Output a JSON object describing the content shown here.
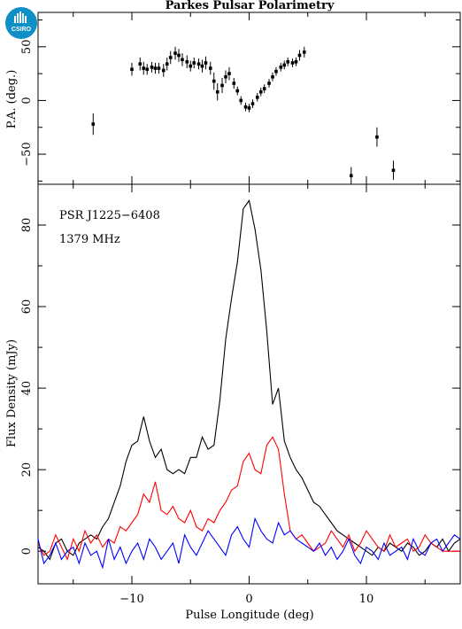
{
  "logo": {
    "text": "CSIRO",
    "color": "#0e8fc6"
  },
  "chart_data": {
    "title": "Parkes Pulsar Polarimetry",
    "annotations": [
      "PSR J1225−6408",
      "1379 MHz"
    ],
    "xlabel": "Pulse Longitude (deg)",
    "xlim": [
      -18,
      18
    ],
    "xticks": [
      -10,
      0,
      10
    ],
    "panels": [
      {
        "name": "pa",
        "type": "scatter",
        "ylabel": "P.A. (deg.)",
        "ylim": [
          -78,
          82
        ],
        "yticks": [
          -50,
          0,
          50
        ],
        "points": [
          [
            -13.3,
            -22,
            10
          ],
          [
            -10.0,
            29,
            6
          ],
          [
            -9.3,
            34,
            6
          ],
          [
            -9.0,
            30,
            6
          ],
          [
            -8.7,
            29,
            5
          ],
          [
            -8.3,
            31,
            5
          ],
          [
            -8.0,
            30,
            5
          ],
          [
            -7.7,
            30,
            5
          ],
          [
            -7.3,
            28,
            6
          ],
          [
            -7.0,
            34,
            6
          ],
          [
            -6.7,
            40,
            6
          ],
          [
            -6.3,
            44,
            6
          ],
          [
            -6.0,
            42,
            6
          ],
          [
            -5.7,
            38,
            6
          ],
          [
            -5.3,
            36,
            6
          ],
          [
            -5.0,
            32,
            5
          ],
          [
            -4.7,
            35,
            5
          ],
          [
            -4.3,
            34,
            5
          ],
          [
            -4.0,
            32,
            6
          ],
          [
            -3.7,
            35,
            6
          ],
          [
            -3.3,
            30,
            6
          ],
          [
            -3.0,
            18,
            8
          ],
          [
            -2.7,
            8,
            8
          ],
          [
            -2.3,
            14,
            7
          ],
          [
            -2.0,
            22,
            6
          ],
          [
            -1.7,
            25,
            6
          ],
          [
            -1.3,
            16,
            5
          ],
          [
            -1.0,
            9,
            4
          ],
          [
            -0.7,
            0,
            4
          ],
          [
            -0.3,
            -6,
            4
          ],
          [
            0.0,
            -7,
            4
          ],
          [
            0.3,
            -3,
            4
          ],
          [
            0.7,
            3,
            4
          ],
          [
            1.0,
            8,
            4
          ],
          [
            1.3,
            11,
            4
          ],
          [
            1.7,
            16,
            4
          ],
          [
            2.0,
            22,
            4
          ],
          [
            2.3,
            27,
            4
          ],
          [
            2.7,
            31,
            4
          ],
          [
            3.0,
            33,
            4
          ],
          [
            3.3,
            36,
            4
          ],
          [
            3.7,
            35,
            4
          ],
          [
            4.0,
            36,
            4
          ],
          [
            4.3,
            42,
            5
          ],
          [
            4.7,
            45,
            5
          ],
          [
            8.7,
            -70,
            8
          ],
          [
            10.9,
            -34,
            9
          ],
          [
            12.3,
            -65,
            9
          ]
        ]
      },
      {
        "name": "profile",
        "type": "line",
        "ylabel": "Flux Density (mJy)",
        "ylim": [
          -8,
          90
        ],
        "yticks": [
          0,
          20,
          40,
          60,
          80
        ],
        "series": [
          {
            "name": "",
            "color": "#000000",
            "x": [
              -18,
              -17.5,
              -17.0,
              -16.5,
              -16.0,
              -15.5,
              -15.0,
              -14.5,
              -14.0,
              -13.5,
              -13.0,
              -12.5,
              -12.0,
              -11.5,
              -11.0,
              -10.5,
              -10.0,
              -9.5,
              -9.0,
              -8.5,
              -8.0,
              -7.5,
              -7.0,
              -6.5,
              -6.0,
              -5.5,
              -5.0,
              -4.5,
              -4.0,
              -3.5,
              -3.0,
              -2.5,
              -2.0,
              -1.5,
              -1.0,
              -0.5,
              0.0,
              0.5,
              1.0,
              1.5,
              2.0,
              2.5,
              3.0,
              3.5,
              4.0,
              4.5,
              5.0,
              5.5,
              6.0,
              6.5,
              7.0,
              7.5,
              8.0,
              8.5,
              9.0,
              9.5,
              10.0,
              10.5,
              11.0,
              11.5,
              12.0,
              12.5,
              13.0,
              13.5,
              14.0,
              14.5,
              15.0,
              15.5,
              16.0,
              16.5,
              17.0,
              17.5,
              18.0
            ],
            "values": [
              1,
              0,
              -2,
              2,
              3,
              0,
              -1,
              2,
              3,
              4,
              3,
              6,
              8,
              12,
              16,
              22,
              26,
              27,
              33,
              27,
              23,
              25,
              20,
              19,
              20,
              19,
              23,
              23,
              28,
              25,
              26,
              37,
              52,
              62,
              71,
              84,
              86,
              79,
              69,
              54,
              36,
              40,
              27,
              23,
              20,
              18,
              15,
              12,
              11,
              9,
              7,
              5,
              4,
              3,
              2,
              1,
              0,
              -1,
              1,
              0,
              2,
              1,
              0,
              2,
              1,
              -1,
              0,
              2,
              1,
              3,
              0,
              2,
              3
            ]
          },
          {
            "name": "",
            "color": "#ff0000",
            "x": [
              -18,
              -17.5,
              -17.0,
              -16.5,
              -16.0,
              -15.5,
              -15.0,
              -14.5,
              -14.0,
              -13.5,
              -13.0,
              -12.5,
              -12.0,
              -11.5,
              -11.0,
              -10.5,
              -10.0,
              -9.5,
              -9.0,
              -8.5,
              -8.0,
              -7.5,
              -7.0,
              -6.5,
              -6.0,
              -5.5,
              -5.0,
              -4.5,
              -4.0,
              -3.5,
              -3.0,
              -2.5,
              -2.0,
              -1.5,
              -1.0,
              -0.5,
              0.0,
              0.5,
              1.0,
              1.5,
              2.0,
              2.5,
              3.0,
              3.5,
              4.0,
              4.5,
              5.0,
              5.5,
              6.0,
              6.5,
              7.0,
              7.5,
              8.0,
              8.5,
              9.0,
              9.5,
              10.0,
              10.5,
              11.0,
              11.5,
              12.0,
              12.5,
              13.0,
              13.5,
              14.0,
              14.5,
              15.0,
              15.5,
              16.0,
              16.5,
              17.0,
              17.5,
              18.0
            ],
            "values": [
              2,
              -1,
              0,
              4,
              1,
              -2,
              3,
              0,
              5,
              2,
              4,
              1,
              3,
              2,
              6,
              5,
              7,
              9,
              14,
              12,
              17,
              10,
              9,
              11,
              8,
              7,
              10,
              6,
              5,
              8,
              7,
              10,
              12,
              15,
              16,
              22,
              24,
              20,
              19,
              26,
              28,
              25,
              14,
              5,
              3,
              4,
              2,
              0,
              1,
              2,
              5,
              3,
              1,
              4,
              0,
              2,
              5,
              3,
              1,
              0,
              4,
              1,
              2,
              3,
              0,
              1,
              4,
              2,
              1,
              0,
              0,
              0,
              0
            ]
          },
          {
            "name": "",
            "color": "#0000ff",
            "x": [
              -18,
              -17.5,
              -17.0,
              -16.5,
              -16.0,
              -15.5,
              -15.0,
              -14.5,
              -14.0,
              -13.5,
              -13.0,
              -12.5,
              -12.0,
              -11.5,
              -11.0,
              -10.5,
              -10.0,
              -9.5,
              -9.0,
              -8.5,
              -8.0,
              -7.5,
              -7.0,
              -6.5,
              -6.0,
              -5.5,
              -5.0,
              -4.5,
              -4.0,
              -3.5,
              -3.0,
              -2.5,
              -2.0,
              -1.5,
              -1.0,
              -0.5,
              0.0,
              0.5,
              1.0,
              1.5,
              2.0,
              2.5,
              3.0,
              3.5,
              4.0,
              4.5,
              5.0,
              5.5,
              6.0,
              6.5,
              7.0,
              7.5,
              8.0,
              8.5,
              9.0,
              9.5,
              10.0,
              10.5,
              11.0,
              11.5,
              12.0,
              12.5,
              13.0,
              13.5,
              14.0,
              14.5,
              15.0,
              15.5,
              16.0,
              16.5,
              17.0,
              17.5,
              18.0
            ],
            "values": [
              3,
              -3,
              -1,
              2,
              -2,
              0,
              1,
              -3,
              2,
              -1,
              0,
              -4,
              3,
              -2,
              1,
              -3,
              0,
              2,
              -2,
              3,
              1,
              -2,
              0,
              2,
              -3,
              4,
              1,
              -1,
              2,
              5,
              3,
              1,
              -1,
              4,
              6,
              3,
              1,
              8,
              5,
              3,
              2,
              7,
              4,
              5,
              3,
              2,
              1,
              0,
              2,
              -1,
              1,
              -2,
              0,
              3,
              -1,
              -3,
              1,
              0,
              -2,
              2,
              -1,
              0,
              1,
              -2,
              3,
              0,
              -1,
              2,
              3,
              0,
              2,
              4,
              3
            ]
          }
        ]
      }
    ]
  }
}
